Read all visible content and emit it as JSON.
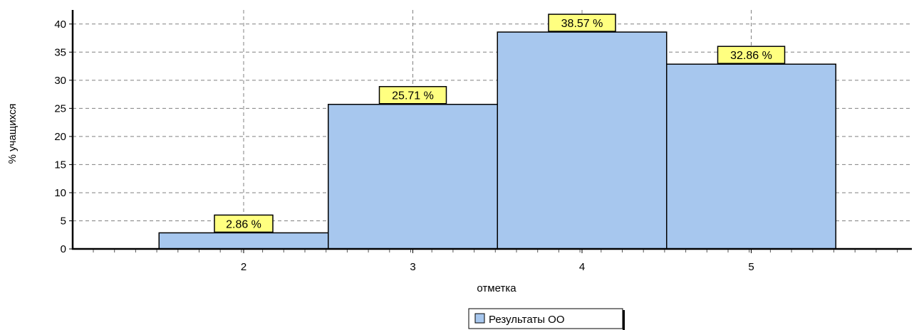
{
  "chart_data": {
    "type": "bar",
    "categories": [
      "2",
      "3",
      "4",
      "5"
    ],
    "values": [
      2.86,
      25.71,
      38.57,
      32.86
    ],
    "value_labels": [
      "2.86 %",
      "25.71 %",
      "38.57 %",
      "32.86 %"
    ],
    "title": "",
    "xlabel": "отметка",
    "ylabel": "% учащихся",
    "ylim": [
      0,
      42.5
    ],
    "yticks": [
      "0",
      "5",
      "10",
      "15",
      "20",
      "25",
      "30",
      "35",
      "40"
    ],
    "grid": true,
    "legend": {
      "placement": "bottom-center",
      "entries": [
        {
          "name": "Результаты ОО",
          "color": "#a7c7ee"
        }
      ]
    },
    "colors": {
      "bar_fill": "#a7c7ee",
      "bar_stroke": "#000000",
      "label_fill": "#ffff80",
      "grid": "#808080"
    }
  }
}
